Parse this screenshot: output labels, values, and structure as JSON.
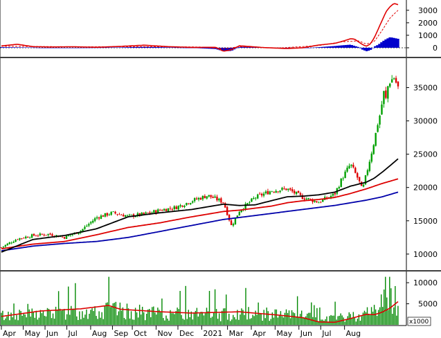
{
  "chart_data": [
    {
      "panel": "oscillator",
      "type": "line",
      "ylim": [
        -500,
        3600
      ],
      "yticks": [
        "3000",
        "2000",
        "1000",
        "0"
      ],
      "ytick_values": [
        3000,
        2000,
        1000,
        0
      ],
      "colors": {
        "line": "#e00000",
        "signal": "#e00000",
        "histogram": "#0000cc"
      },
      "series": [
        {
          "key": "osc",
          "t": [
            0,
            4,
            8,
            12,
            18,
            24,
            30,
            36,
            42,
            48,
            54,
            56,
            58,
            60,
            66,
            72,
            76,
            80,
            84,
            86,
            88,
            89,
            90,
            91,
            92,
            93,
            94,
            95,
            96,
            97,
            98,
            99,
            100
          ],
          "values": [
            150,
            280,
            90,
            60,
            80,
            40,
            110,
            210,
            90,
            30,
            40,
            -280,
            -150,
            160,
            20,
            -60,
            0,
            220,
            350,
            520,
            720,
            700,
            480,
            260,
            120,
            300,
            800,
            1500,
            2200,
            2900,
            3300,
            3550,
            3450
          ]
        },
        {
          "key": "signal",
          "t": [
            0,
            10,
            20,
            30,
            40,
            50,
            56,
            60,
            70,
            80,
            86,
            90,
            92,
            94,
            96,
            98,
            100
          ],
          "values": [
            120,
            100,
            70,
            90,
            80,
            60,
            -80,
            80,
            -20,
            180,
            480,
            550,
            300,
            500,
            1400,
            2400,
            3000
          ]
        },
        {
          "key": "histogram",
          "t": [
            0,
            8,
            12,
            30,
            36,
            48,
            54,
            56,
            58,
            60,
            66,
            72,
            76,
            80,
            84,
            86,
            88,
            90,
            91,
            92,
            93,
            94,
            95,
            96,
            97,
            98,
            100
          ],
          "values": [
            50,
            20,
            -20,
            30,
            80,
            -10,
            -100,
            -280,
            -250,
            80,
            40,
            -60,
            -40,
            50,
            140,
            200,
            250,
            60,
            -150,
            -280,
            -200,
            100,
            250,
            500,
            700,
            850,
            720
          ]
        }
      ]
    },
    {
      "panel": "price",
      "type": "candlestick",
      "ylim": [
        7800,
        39000
      ],
      "yticks": [
        "35000",
        "30000",
        "25000",
        "20000",
        "15000",
        "10000"
      ],
      "ytick_values": [
        35000,
        30000,
        25000,
        20000,
        15000,
        10000
      ],
      "colors": {
        "up": "#00a000",
        "down": "#dd0000",
        "ma_short": "#000000",
        "ma_mid": "#dd0000",
        "ma_long": "#0000aa"
      },
      "price_path": {
        "t": [
          0,
          4,
          8,
          12,
          16,
          20,
          24,
          28,
          32,
          36,
          40,
          44,
          48,
          52,
          56,
          58,
          60,
          64,
          68,
          72,
          76,
          80,
          84,
          86,
          88,
          90,
          91,
          92,
          93,
          94,
          95,
          95.7,
          96,
          96.5,
          97,
          97.5,
          98,
          99,
          100
        ],
        "values": [
          11000,
          12300,
          12800,
          13000,
          12500,
          13500,
          15500,
          16200,
          15700,
          16000,
          16600,
          17000,
          18000,
          18800,
          17800,
          14200,
          16500,
          18500,
          19500,
          19800,
          18500,
          17800,
          19000,
          21500,
          23500,
          21200,
          19500,
          22000,
          24500,
          27000,
          30000,
          31500,
          33000,
          34500,
          33000,
          35500,
          36000,
          36500,
          35000
        ]
      },
      "series": [
        {
          "key": "ma_short",
          "t": [
            0,
            8,
            16,
            24,
            32,
            40,
            48,
            56,
            60,
            64,
            68,
            72,
            76,
            80,
            84,
            88,
            90,
            92,
            94,
            96,
            98,
            100
          ],
          "values": [
            10300,
            12200,
            12800,
            13800,
            15600,
            16200,
            16700,
            17500,
            17300,
            17400,
            18000,
            18600,
            18700,
            18900,
            19300,
            20200,
            20500,
            20800,
            21400,
            22300,
            23300,
            24300
          ]
        },
        {
          "key": "ma_mid",
          "t": [
            0,
            8,
            16,
            24,
            32,
            40,
            48,
            56,
            60,
            64,
            68,
            72,
            76,
            80,
            84,
            88,
            92,
            96,
            100
          ],
          "values": [
            10800,
            11500,
            11900,
            12900,
            14000,
            14700,
            15600,
            16400,
            16600,
            16900,
            17200,
            17700,
            18000,
            18200,
            18500,
            19100,
            19800,
            20600,
            21300
          ]
        },
        {
          "key": "ma_long",
          "t": [
            0,
            8,
            16,
            24,
            32,
            40,
            48,
            56,
            60,
            64,
            68,
            72,
            76,
            80,
            84,
            88,
            92,
            96,
            100
          ],
          "values": [
            10500,
            11200,
            11600,
            11900,
            12500,
            13400,
            14300,
            15200,
            15500,
            15800,
            16100,
            16400,
            16700,
            17000,
            17300,
            17700,
            18100,
            18600,
            19300
          ]
        }
      ]
    },
    {
      "panel": "volume",
      "type": "bar",
      "ylim": [
        0,
        12000
      ],
      "yticks": [
        "10000",
        "5000"
      ],
      "ytick_values": [
        10000,
        5000
      ],
      "unit": "x1000",
      "colors": {
        "bars": "#008800",
        "ma": "#dd0000"
      },
      "volume_path": {
        "t": [
          0,
          10,
          20,
          27,
          30,
          40,
          48,
          50,
          56,
          60,
          70,
          75,
          80,
          85,
          88,
          92,
          94,
          96,
          98,
          100
        ],
        "values": [
          2200,
          2600,
          3000,
          3800,
          3200,
          2600,
          2400,
          2600,
          2400,
          2700,
          2400,
          2200,
          1400,
          1600,
          2000,
          2600,
          3500,
          5500,
          6500,
          6000
        ]
      },
      "series": [
        {
          "key": "volume_ma",
          "t": [
            0,
            10,
            20,
            27,
            30,
            40,
            48,
            56,
            60,
            70,
            76,
            80,
            84,
            88,
            92,
            94,
            96,
            98,
            100
          ],
          "values": [
            2000,
            3300,
            3800,
            4600,
            3700,
            3100,
            2800,
            3000,
            3100,
            2300,
            1700,
            700,
            600,
            1500,
            2500,
            2400,
            3000,
            4000,
            5500
          ]
        }
      ]
    }
  ],
  "x_axis": {
    "labels": [
      "Apr",
      "May",
      "Jun",
      "Jul",
      "Aug",
      "Sep",
      "Oct",
      "Nov",
      "Dec",
      "2021",
      "Mar",
      "Apr",
      "May",
      "Jun",
      "Jul",
      "Aug"
    ],
    "positions": [
      0,
      5.5,
      11,
      16.5,
      22.5,
      28,
      33,
      39,
      44.5,
      50.5,
      57,
      63,
      69,
      75,
      80.5,
      86.5
    ]
  }
}
